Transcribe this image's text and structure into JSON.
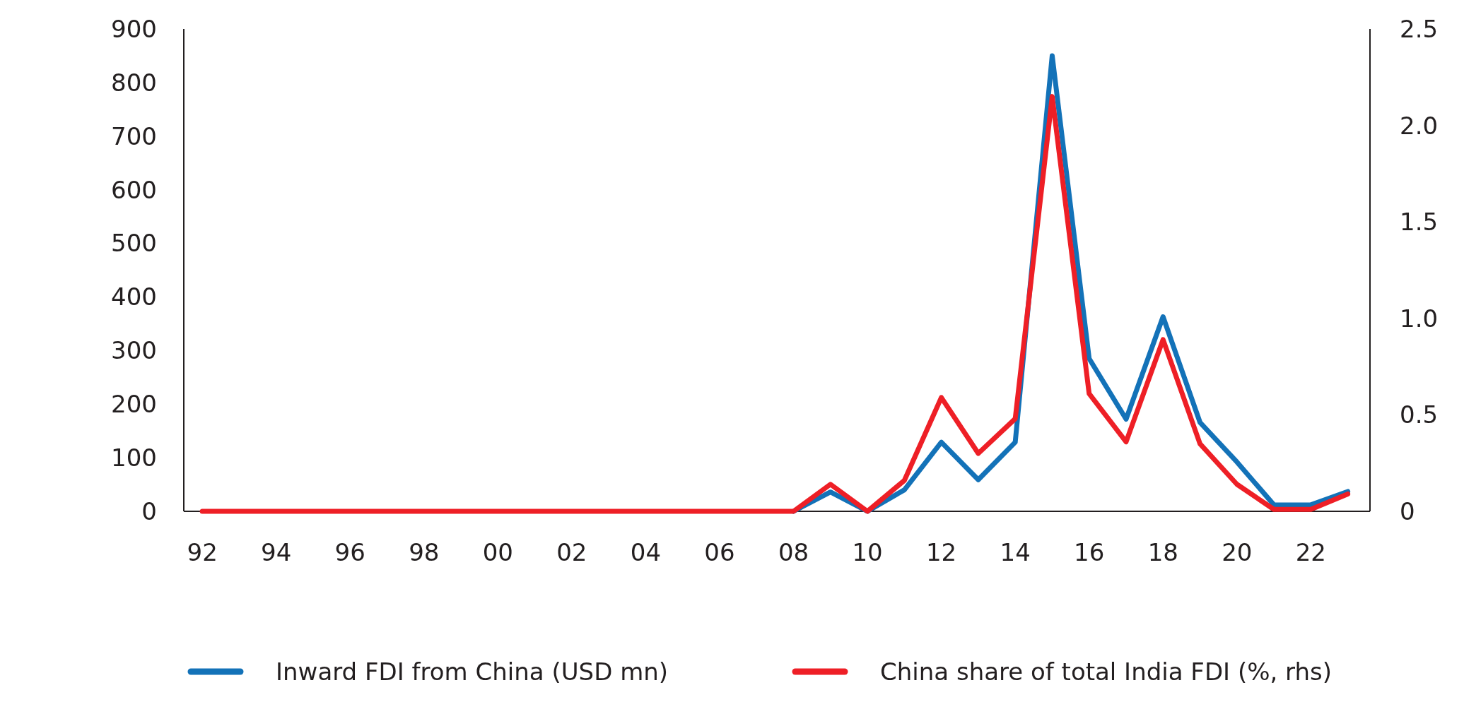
{
  "chart_data": {
    "type": "line",
    "x": [
      1992,
      1993,
      1994,
      1995,
      1996,
      1997,
      1998,
      1999,
      2000,
      2001,
      2002,
      2003,
      2004,
      2005,
      2006,
      2007,
      2008,
      2009,
      2010,
      2011,
      2012,
      2013,
      2014,
      2015,
      2016,
      2017,
      2018,
      2019,
      2020,
      2021,
      2022,
      2023
    ],
    "series": [
      {
        "name": "Inward FDI from China (USD mn)",
        "color": "#1372b8",
        "values": [
          null,
          null,
          null,
          null,
          null,
          null,
          null,
          null,
          null,
          null,
          null,
          null,
          null,
          null,
          null,
          null,
          0,
          36,
          0,
          40,
          129,
          59,
          129,
          850,
          285,
          172,
          363,
          166,
          92,
          12,
          12,
          37
        ]
      },
      {
        "name": "China share of total India FDI (%, rhs)",
        "color": "#ee1f26",
        "axis": "y2",
        "values": [
          0,
          0,
          0,
          0,
          0,
          0,
          0,
          0,
          0,
          0,
          0,
          0,
          0,
          0,
          0,
          0,
          0,
          0.14,
          0,
          0.16,
          0.59,
          0.3,
          0.48,
          2.15,
          0.61,
          0.36,
          0.89,
          0.35,
          0.14,
          0.01,
          0.01,
          0.09
        ]
      }
    ],
    "xlim": [
      1991.5,
      2023.6
    ],
    "xticks": [
      {
        "value": 1992,
        "label": "92"
      },
      {
        "value": 1994,
        "label": "94"
      },
      {
        "value": 1996,
        "label": "96"
      },
      {
        "value": 1998,
        "label": "98"
      },
      {
        "value": 2000,
        "label": "00"
      },
      {
        "value": 2002,
        "label": "02"
      },
      {
        "value": 2004,
        "label": "04"
      },
      {
        "value": 2006,
        "label": "06"
      },
      {
        "value": 2008,
        "label": "08"
      },
      {
        "value": 2010,
        "label": "10"
      },
      {
        "value": 2012,
        "label": "12"
      },
      {
        "value": 2014,
        "label": "14"
      },
      {
        "value": 2016,
        "label": "16"
      },
      {
        "value": 2018,
        "label": "18"
      },
      {
        "value": 2020,
        "label": "20"
      },
      {
        "value": 2022,
        "label": "22"
      }
    ],
    "ylim": [
      0,
      900
    ],
    "yticks": [
      0,
      100,
      200,
      300,
      400,
      500,
      600,
      700,
      800,
      900
    ],
    "y2lim": [
      0,
      2.5
    ],
    "y2ticks": [
      0,
      {
        "value": 0.5,
        "label": "0.5"
      },
      {
        "value": 1,
        "label": "1.0"
      },
      {
        "value": 1.5,
        "label": "1.5"
      },
      {
        "value": 2,
        "label": "2.0"
      },
      {
        "value": 2.5,
        "label": "2.5"
      }
    ],
    "grid": false,
    "legend": "bottom",
    "line_style": "solid",
    "marker": "none"
  }
}
